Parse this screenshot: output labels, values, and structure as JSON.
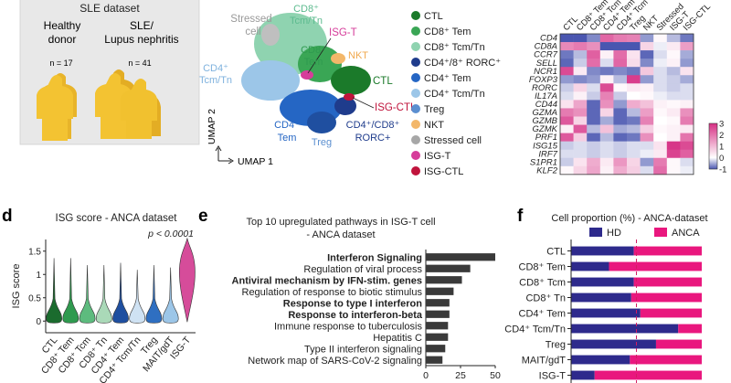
{
  "cohort": {
    "title": "SLE dataset",
    "groups": [
      {
        "label_lines": [
          "Healthy",
          "donor"
        ],
        "n": "n = 17"
      },
      {
        "label_lines": [
          "SLE/",
          "Lupus nephritis"
        ],
        "n": "n = 41"
      }
    ]
  },
  "umap": {
    "xlabel": "UMAP 1",
    "ylabel": "UMAP 2",
    "labels": {
      "stressed_1": "Stressed",
      "stressed_2": "cell",
      "cd8_tcm_1": "CD8⁺",
      "cd8_tcm_2": "Tcm/Tn",
      "isgt": "ISG-T",
      "cd8_tem_1": "CD8⁺",
      "cd8_tem_2": "Tem",
      "nkt": "NKT",
      "cd4_tcm_1": "CD4⁺",
      "cd4_tcm_2": "Tcm/Tn",
      "ctl": "CTL",
      "isgctl": "ISG-CTL",
      "cd4_tem_1": "CD4⁺",
      "cd4_tem_2": "Tem",
      "treg": "Treg",
      "rorc_1": "CD4⁺/CD8⁺",
      "rorc_2": "RORC+"
    }
  },
  "legend": {
    "items": [
      {
        "label": "CTL",
        "color": "#1b7a2a"
      },
      {
        "label": "CD8⁺ Tem",
        "color": "#3aa655"
      },
      {
        "label": "CD8⁺ Tcm/Tn",
        "color": "#8fd3b0"
      },
      {
        "label": "CD4⁺/8⁺ RORC⁺",
        "color": "#1f3c8c"
      },
      {
        "label": "CD4⁺ Tem",
        "color": "#2566c4"
      },
      {
        "label": "CD4⁺ Tcm/Tn",
        "color": "#9cc6e8"
      },
      {
        "label": "Treg",
        "color": "#5b8fd0"
      },
      {
        "label": "NKT",
        "color": "#f3b76a"
      },
      {
        "label": "Stressed cell",
        "color": "#a7a7a7"
      },
      {
        "label": "ISG-T",
        "color": "#d63c9a"
      },
      {
        "label": "ISG-CTL",
        "color": "#c0143c"
      }
    ]
  },
  "heatmap": {
    "columns": [
      "CTL",
      "CD8⁺ Tem",
      "CD8⁺ Tcm",
      "CD4⁺ Tem",
      "CD4⁺ Tcm",
      "Treg",
      "NKT",
      "Stressed",
      "ISG-T",
      "ISG-CTL"
    ],
    "genes": [
      "CD4",
      "CD8A",
      "CCR7",
      "SELL",
      "NCR1",
      "FOXP3",
      "RORC",
      "IL17A",
      "CD44",
      "GZMA",
      "GZMB",
      "GZMK",
      "PRF1",
      "ISG15",
      "IRF7",
      "S1PR1",
      "KLF2"
    ],
    "values": [
      [
        -1,
        -1,
        -0.7,
        2.2,
        1.9,
        1.8,
        -0.6,
        0.1,
        -0.4,
        -0.8
      ],
      [
        1.7,
        1.9,
        1.6,
        -1,
        -1,
        -1,
        0.6,
        -0.1,
        0.3,
        1.4
      ],
      [
        -0.8,
        -0.4,
        2.3,
        0.2,
        2.1,
        0.4,
        -0.9,
        -0.2,
        0.1,
        -0.5
      ],
      [
        -0.9,
        -0.3,
        2.1,
        -0.2,
        2.2,
        0.5,
        -0.7,
        -0.1,
        0.2,
        -0.6
      ],
      [
        2.6,
        0.3,
        -0.7,
        -0.8,
        -0.7,
        -0.8,
        0.8,
        -0.2,
        -0.4,
        0.4
      ],
      [
        -0.6,
        -0.7,
        -0.6,
        0.2,
        -0.4,
        2.8,
        -0.6,
        -0.2,
        -0.3,
        -0.5
      ],
      [
        -0.3,
        0.6,
        -0.2,
        2.6,
        0.1,
        0.3,
        0.2,
        -0.2,
        -0.3,
        -0.2
      ],
      [
        -0.2,
        0.2,
        -0.3,
        1.8,
        -0.3,
        0.0,
        0.1,
        -0.1,
        -0.2,
        -0.2
      ],
      [
        0.4,
        1.3,
        -0.9,
        1.6,
        -0.6,
        1.2,
        0.9,
        0.2,
        0.1,
        0.2
      ],
      [
        1.9,
        1.6,
        -0.9,
        0.6,
        -0.9,
        -0.4,
        1.4,
        0.1,
        0.3,
        1.6
      ],
      [
        2.4,
        0.6,
        -0.9,
        -0.5,
        -0.9,
        -0.8,
        1.8,
        0.0,
        0.1,
        1.9
      ],
      [
        0.2,
        2.4,
        -0.4,
        0.9,
        -0.5,
        -0.4,
        0.7,
        0.1,
        0.2,
        0.3
      ],
      [
        2.4,
        0.7,
        -0.9,
        -0.4,
        -0.9,
        -0.8,
        1.6,
        0.0,
        0.2,
        2.0
      ],
      [
        -0.3,
        -0.2,
        -0.3,
        -0.2,
        -0.3,
        -0.2,
        -0.2,
        0.4,
        2.9,
        2.6
      ],
      [
        -0.2,
        -0.2,
        -0.3,
        -0.2,
        -0.3,
        -0.2,
        -0.1,
        0.3,
        2.7,
        2.3
      ],
      [
        -0.3,
        0.4,
        1.2,
        0.3,
        1.5,
        0.6,
        -0.6,
        1.9,
        0.1,
        -0.2
      ],
      [
        0.1,
        0.6,
        1.3,
        0.2,
        1.2,
        0.7,
        -0.2,
        2.1,
        0.1,
        -0.1
      ]
    ],
    "scale": {
      "min": -1,
      "max": 3,
      "ticks": [
        "3",
        "2",
        "1",
        "0",
        "-1"
      ],
      "low_color": "#4a56b0",
      "mid_color": "#ffffff",
      "high_color": "#d62f84"
    }
  },
  "chart_data": [
    {
      "type": "violin",
      "panel": "d",
      "title": "ISG score - ANCA dataset",
      "annotation": "p < 0.0001",
      "ylabel": "ISG score",
      "ylim": [
        -0.25,
        1.75
      ],
      "yticks": [
        0,
        0.5,
        1,
        1.5
      ],
      "ytick_labels": [
        "0",
        "0.5",
        "1",
        "1.5"
      ],
      "categories": [
        "CTL",
        "CD8⁺ Tem",
        "CD8⁺ Tcm",
        "CD8⁺ Tn",
        "CD4⁺ Tem",
        "CD4⁺ Tcm/Tn",
        "Treg",
        "MAIT/gdT",
        "ISG-T"
      ],
      "colors": [
        "#1b6b2e",
        "#2f9a4f",
        "#5dbb7e",
        "#aad9b8",
        "#1f4fa0",
        "#cfe2f3",
        "#2f6fc1",
        "#9cc6e8",
        "#d64c9a"
      ],
      "max_values": [
        1.35,
        1.35,
        1.2,
        1.2,
        1.25,
        1.1,
        1.2,
        1.15,
        1.78
      ],
      "modes": [
        0.05,
        0.05,
        0.05,
        0.05,
        0.05,
        0.05,
        0.05,
        0.05,
        1.05
      ]
    },
    {
      "type": "bar",
      "orientation": "horizontal",
      "panel": "e",
      "title_lines": [
        "Top 10 upregulated pathways in ISG-T cell",
        "- ANCA dataset"
      ],
      "categories": [
        "Interferon Signaling",
        "Regulation of viral process",
        "Antiviral mechanism by IFN-stim. genes",
        "Regulation of response to biotic stimulus",
        "Response to type I interferon",
        "Response to interferon-beta",
        "Immune response to tuberculosis",
        "Hepatitis C",
        "Type II interferon signaling",
        "Network map of SARS-CoV-2 signaling"
      ],
      "bold": [
        true,
        false,
        true,
        false,
        true,
        true,
        false,
        false,
        false,
        false
      ],
      "values": [
        50,
        32,
        26,
        20,
        17,
        17,
        16,
        16,
        14,
        12
      ],
      "xlim": [
        0,
        50
      ],
      "xticks": [
        0,
        25,
        50
      ],
      "xtick_labels": [
        "0",
        "25",
        "50"
      ],
      "color": "#3a3a3a"
    },
    {
      "type": "stacked_bar",
      "orientation": "horizontal",
      "panel": "f",
      "title": "Cell proportion (%) - ANCA-dataset",
      "categories": [
        "CTL",
        "CD8⁺ Tem",
        "CD8⁺ Tcm",
        "CD8⁺ Tn",
        "CD4⁺ Tem",
        "CD4⁺ Tcm/Tn",
        "Treg",
        "MAIT/gdT",
        "ISG-T"
      ],
      "series": [
        {
          "name": "HD",
          "color": "#2e2a8c",
          "values": [
            48,
            29,
            48,
            46,
            53,
            82,
            65,
            45,
            18
          ]
        },
        {
          "name": "ANCA",
          "color": "#e9177e",
          "values": [
            52,
            71,
            52,
            54,
            47,
            18,
            35,
            55,
            82
          ]
        }
      ],
      "reference_line": 50
    }
  ],
  "panel_letters": {
    "d": "d",
    "e": "e",
    "f": "f"
  }
}
